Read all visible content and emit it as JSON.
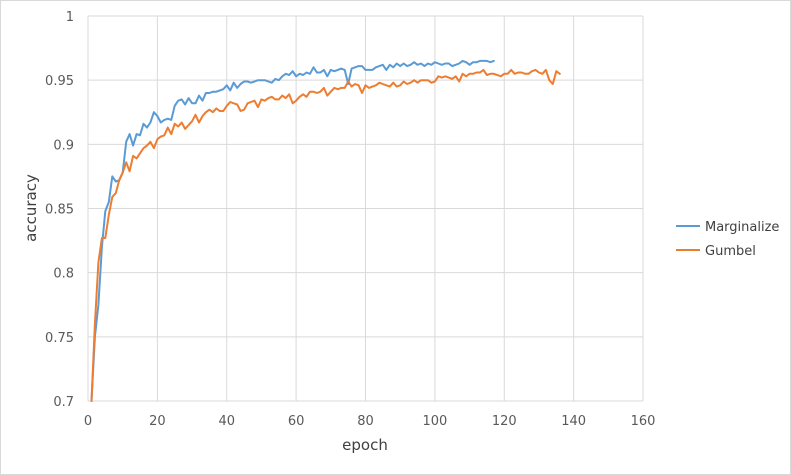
{
  "chart_data": {
    "type": "line",
    "title": "",
    "xlabel": "epoch",
    "ylabel": "accuracy",
    "xlim": [
      0,
      160
    ],
    "ylim": [
      0.7,
      1.0
    ],
    "x_ticks": [
      "0",
      "20",
      "40",
      "60",
      "80",
      "100",
      "120",
      "140",
      "160"
    ],
    "y_ticks": [
      "0.7",
      "0.75",
      "0.8",
      "0.85",
      "0.9",
      "0.95",
      "1"
    ],
    "grid": true,
    "legend_position": "right",
    "series": [
      {
        "name": "Marginalize",
        "color": "#5b9bd5",
        "x": [
          1,
          2,
          3,
          4,
          5,
          6,
          7,
          8,
          9,
          10,
          11,
          12,
          13,
          14,
          15,
          16,
          17,
          18,
          19,
          20,
          21,
          22,
          23,
          24,
          25,
          26,
          27,
          28,
          29,
          30,
          31,
          32,
          33,
          34,
          35,
          36,
          37,
          38,
          39,
          40,
          41,
          42,
          43,
          44,
          45,
          46,
          47,
          48,
          49,
          50,
          51,
          52,
          53,
          54,
          55,
          56,
          57,
          58,
          59,
          60,
          61,
          62,
          63,
          64,
          65,
          66,
          67,
          68,
          69,
          70,
          71,
          72,
          73,
          74,
          75,
          76,
          77,
          78,
          79,
          80,
          81,
          82,
          83,
          84,
          85,
          86,
          87,
          88,
          89,
          90,
          91,
          92,
          93,
          94,
          95,
          96,
          97,
          98,
          99,
          100,
          101,
          102,
          103,
          104,
          105,
          106,
          107,
          108,
          109,
          110,
          111,
          112,
          113,
          114,
          115,
          116,
          117
        ],
        "y": [
          0.7,
          0.75,
          0.775,
          0.82,
          0.848,
          0.855,
          0.875,
          0.871,
          0.872,
          0.878,
          0.902,
          0.908,
          0.899,
          0.908,
          0.907,
          0.916,
          0.913,
          0.917,
          0.925,
          0.922,
          0.917,
          0.919,
          0.92,
          0.919,
          0.93,
          0.934,
          0.935,
          0.931,
          0.936,
          0.932,
          0.932,
          0.938,
          0.934,
          0.94,
          0.94,
          0.941,
          0.941,
          0.942,
          0.943,
          0.946,
          0.942,
          0.948,
          0.944,
          0.947,
          0.949,
          0.949,
          0.948,
          0.949,
          0.95,
          0.95,
          0.95,
          0.949,
          0.948,
          0.951,
          0.95,
          0.953,
          0.955,
          0.954,
          0.957,
          0.953,
          0.955,
          0.954,
          0.956,
          0.955,
          0.96,
          0.956,
          0.956,
          0.958,
          0.953,
          0.958,
          0.957,
          0.958,
          0.959,
          0.958,
          0.947,
          0.959,
          0.96,
          0.961,
          0.961,
          0.958,
          0.958,
          0.958,
          0.96,
          0.961,
          0.962,
          0.958,
          0.962,
          0.96,
          0.963,
          0.961,
          0.963,
          0.961,
          0.962,
          0.964,
          0.962,
          0.963,
          0.961,
          0.963,
          0.962,
          0.964,
          0.963,
          0.962,
          0.963,
          0.963,
          0.961,
          0.962,
          0.963,
          0.965,
          0.964,
          0.962,
          0.964,
          0.964,
          0.965,
          0.965,
          0.965,
          0.964,
          0.965
        ]
      },
      {
        "name": "Gumbel",
        "color": "#ed7d31",
        "x": [
          1,
          2,
          3,
          4,
          5,
          6,
          7,
          8,
          9,
          10,
          11,
          12,
          13,
          14,
          15,
          16,
          17,
          18,
          19,
          20,
          21,
          22,
          23,
          24,
          25,
          26,
          27,
          28,
          29,
          30,
          31,
          32,
          33,
          34,
          35,
          36,
          37,
          38,
          39,
          40,
          41,
          42,
          43,
          44,
          45,
          46,
          47,
          48,
          49,
          50,
          51,
          52,
          53,
          54,
          55,
          56,
          57,
          58,
          59,
          60,
          61,
          62,
          63,
          64,
          65,
          66,
          67,
          68,
          69,
          70,
          71,
          72,
          73,
          74,
          75,
          76,
          77,
          78,
          79,
          80,
          81,
          82,
          83,
          84,
          85,
          86,
          87,
          88,
          89,
          90,
          91,
          92,
          93,
          94,
          95,
          96,
          97,
          98,
          99,
          100,
          101,
          102,
          103,
          104,
          105,
          106,
          107,
          108,
          109,
          110,
          111,
          112,
          113,
          114,
          115,
          116,
          117,
          118,
          119,
          120,
          121,
          122,
          123,
          124,
          125,
          126,
          127,
          128,
          129,
          130,
          131,
          132,
          133,
          134,
          135,
          136
        ],
        "y": [
          0.69,
          0.76,
          0.808,
          0.827,
          0.827,
          0.845,
          0.859,
          0.862,
          0.872,
          0.878,
          0.886,
          0.879,
          0.891,
          0.889,
          0.893,
          0.897,
          0.899,
          0.902,
          0.897,
          0.904,
          0.906,
          0.907,
          0.913,
          0.908,
          0.916,
          0.914,
          0.917,
          0.912,
          0.915,
          0.918,
          0.923,
          0.917,
          0.922,
          0.925,
          0.927,
          0.925,
          0.928,
          0.926,
          0.926,
          0.93,
          0.933,
          0.932,
          0.931,
          0.926,
          0.927,
          0.932,
          0.933,
          0.934,
          0.929,
          0.935,
          0.934,
          0.936,
          0.937,
          0.935,
          0.935,
          0.938,
          0.936,
          0.939,
          0.932,
          0.934,
          0.937,
          0.939,
          0.937,
          0.941,
          0.941,
          0.94,
          0.941,
          0.944,
          0.938,
          0.941,
          0.944,
          0.943,
          0.944,
          0.944,
          0.949,
          0.945,
          0.947,
          0.946,
          0.94,
          0.946,
          0.944,
          0.945,
          0.946,
          0.948,
          0.947,
          0.946,
          0.945,
          0.948,
          0.945,
          0.946,
          0.949,
          0.947,
          0.948,
          0.95,
          0.948,
          0.95,
          0.95,
          0.95,
          0.948,
          0.949,
          0.953,
          0.952,
          0.953,
          0.952,
          0.951,
          0.953,
          0.949,
          0.955,
          0.953,
          0.955,
          0.955,
          0.956,
          0.956,
          0.958,
          0.954,
          0.955,
          0.955,
          0.954,
          0.953,
          0.955,
          0.955,
          0.958,
          0.955,
          0.956,
          0.956,
          0.955,
          0.955,
          0.957,
          0.958,
          0.956,
          0.955,
          0.958,
          0.95,
          0.947,
          0.957,
          0.955
        ]
      }
    ]
  }
}
